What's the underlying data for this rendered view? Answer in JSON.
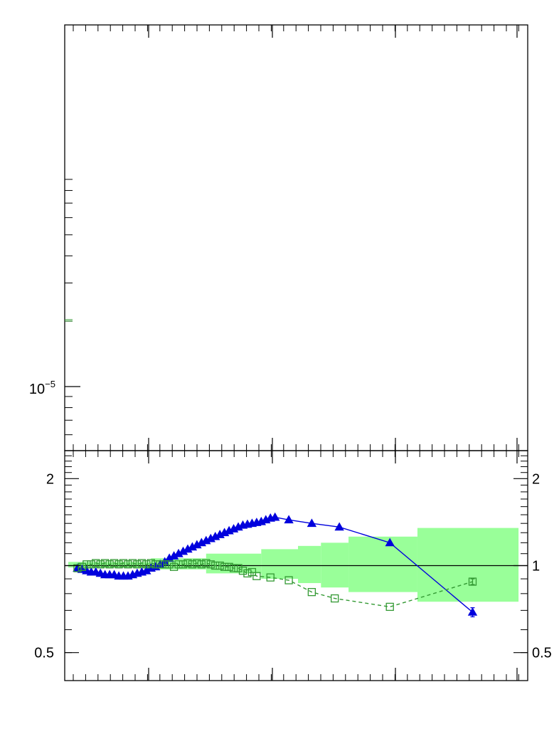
{
  "colors": {
    "band": "#99ff99",
    "series_a": "#0000dd",
    "series_b": "#339933",
    "frame": "#000000"
  },
  "chart_data": [
    {
      "type": "scatter",
      "yscale": "log",
      "ytick_labels": [
        {
          "value": 1e-05,
          "base": "10",
          "exponent": "−5"
        }
      ],
      "title": "",
      "xlabel": "",
      "ylabel": "",
      "series": []
    },
    {
      "type": "line",
      "yscale": "log",
      "ylim": [
        0.4,
        2.5
      ],
      "ytick_labels_left": [
        "2",
        "0.5"
      ],
      "ytick_labels_right": [
        "2",
        "1",
        "0.5"
      ],
      "ytick_values": [
        2,
        1,
        0.5
      ],
      "reference_line": 1,
      "xlim": [
        0,
        1
      ],
      "band": [
        {
          "x0": 0.0,
          "x1": 0.18,
          "lo": 0.985,
          "hi": 1.03
        },
        {
          "x0": 0.18,
          "x1": 0.3,
          "lo": 0.97,
          "hi": 1.06
        },
        {
          "x0": 0.3,
          "x1": 0.42,
          "lo": 0.94,
          "hi": 1.1
        },
        {
          "x0": 0.42,
          "x1": 0.5,
          "lo": 0.9,
          "hi": 1.14
        },
        {
          "x0": 0.5,
          "x1": 0.55,
          "lo": 0.87,
          "hi": 1.17
        },
        {
          "x0": 0.55,
          "x1": 0.61,
          "lo": 0.84,
          "hi": 1.2
        },
        {
          "x0": 0.61,
          "x1": 0.76,
          "lo": 0.81,
          "hi": 1.26
        },
        {
          "x0": 0.76,
          "x1": 0.98,
          "lo": 0.75,
          "hi": 1.35
        }
      ],
      "series": [
        {
          "marker": "filled-triangle",
          "line": "solid",
          "x": [
            0.02,
            0.03,
            0.04,
            0.05,
            0.06,
            0.07,
            0.08,
            0.09,
            0.1,
            0.11,
            0.12,
            0.13,
            0.14,
            0.15,
            0.16,
            0.17,
            0.18,
            0.19,
            0.2,
            0.21,
            0.22,
            0.23,
            0.24,
            0.25,
            0.26,
            0.27,
            0.28,
            0.29,
            0.3,
            0.31,
            0.32,
            0.33,
            0.34,
            0.35,
            0.36,
            0.37,
            0.38,
            0.39,
            0.4,
            0.41,
            0.42,
            0.43,
            0.44,
            0.45,
            0.48,
            0.53,
            0.59,
            0.7,
            0.88
          ],
          "y": [
            0.98,
            0.97,
            0.96,
            0.95,
            0.95,
            0.94,
            0.93,
            0.93,
            0.93,
            0.92,
            0.92,
            0.92,
            0.93,
            0.94,
            0.95,
            0.96,
            0.98,
            0.99,
            1.01,
            1.03,
            1.06,
            1.08,
            1.1,
            1.12,
            1.14,
            1.16,
            1.18,
            1.2,
            1.22,
            1.24,
            1.26,
            1.28,
            1.3,
            1.32,
            1.34,
            1.36,
            1.38,
            1.39,
            1.4,
            1.41,
            1.42,
            1.44,
            1.46,
            1.47,
            1.44,
            1.4,
            1.36,
            1.2,
            0.69
          ],
          "y_err": [
            0,
            0,
            0,
            0,
            0,
            0,
            0,
            0,
            0,
            0,
            0,
            0,
            0,
            0,
            0,
            0,
            0,
            0,
            0,
            0,
            0,
            0,
            0,
            0,
            0,
            0,
            0,
            0,
            0,
            0,
            0,
            0,
            0,
            0,
            0,
            0,
            0,
            0,
            0,
            0,
            0,
            0,
            0,
            0,
            0,
            0,
            0,
            0,
            0.025
          ]
        },
        {
          "marker": "open-square",
          "line": "dashed",
          "x": [
            0.02,
            0.03,
            0.04,
            0.05,
            0.06,
            0.07,
            0.08,
            0.09,
            0.1,
            0.11,
            0.12,
            0.13,
            0.14,
            0.15,
            0.16,
            0.17,
            0.18,
            0.19,
            0.2,
            0.21,
            0.22,
            0.23,
            0.24,
            0.25,
            0.26,
            0.27,
            0.28,
            0.29,
            0.3,
            0.31,
            0.32,
            0.33,
            0.34,
            0.35,
            0.36,
            0.37,
            0.38,
            0.39,
            0.4,
            0.41,
            0.44,
            0.48,
            0.53,
            0.58,
            0.7,
            0.88
          ],
          "y": [
            0.98,
            0.99,
            1.01,
            1.01,
            1.02,
            1.01,
            1.02,
            1.01,
            1.02,
            1.01,
            1.02,
            1.01,
            1.02,
            1.01,
            1.02,
            1.01,
            1.02,
            1.01,
            1.01,
            1.01,
            1.01,
            0.99,
            1.01,
            1.01,
            1.02,
            1.01,
            1.02,
            1.01,
            1.02,
            1.01,
            1.0,
            1.0,
            0.99,
            0.99,
            0.98,
            0.98,
            0.96,
            0.94,
            0.95,
            0.92,
            0.91,
            0.89,
            0.81,
            0.77,
            0.72,
            0.88
          ],
          "y_err": [
            0,
            0,
            0,
            0,
            0,
            0,
            0,
            0,
            0,
            0,
            0,
            0,
            0,
            0,
            0,
            0,
            0,
            0,
            0,
            0,
            0,
            0,
            0,
            0,
            0,
            0,
            0,
            0,
            0,
            0,
            0,
            0,
            0,
            0,
            0,
            0,
            0,
            0,
            0,
            0,
            0,
            0,
            0,
            0,
            0,
            0.02
          ]
        }
      ],
      "title": "",
      "xlabel": "",
      "ylabel": ""
    }
  ]
}
